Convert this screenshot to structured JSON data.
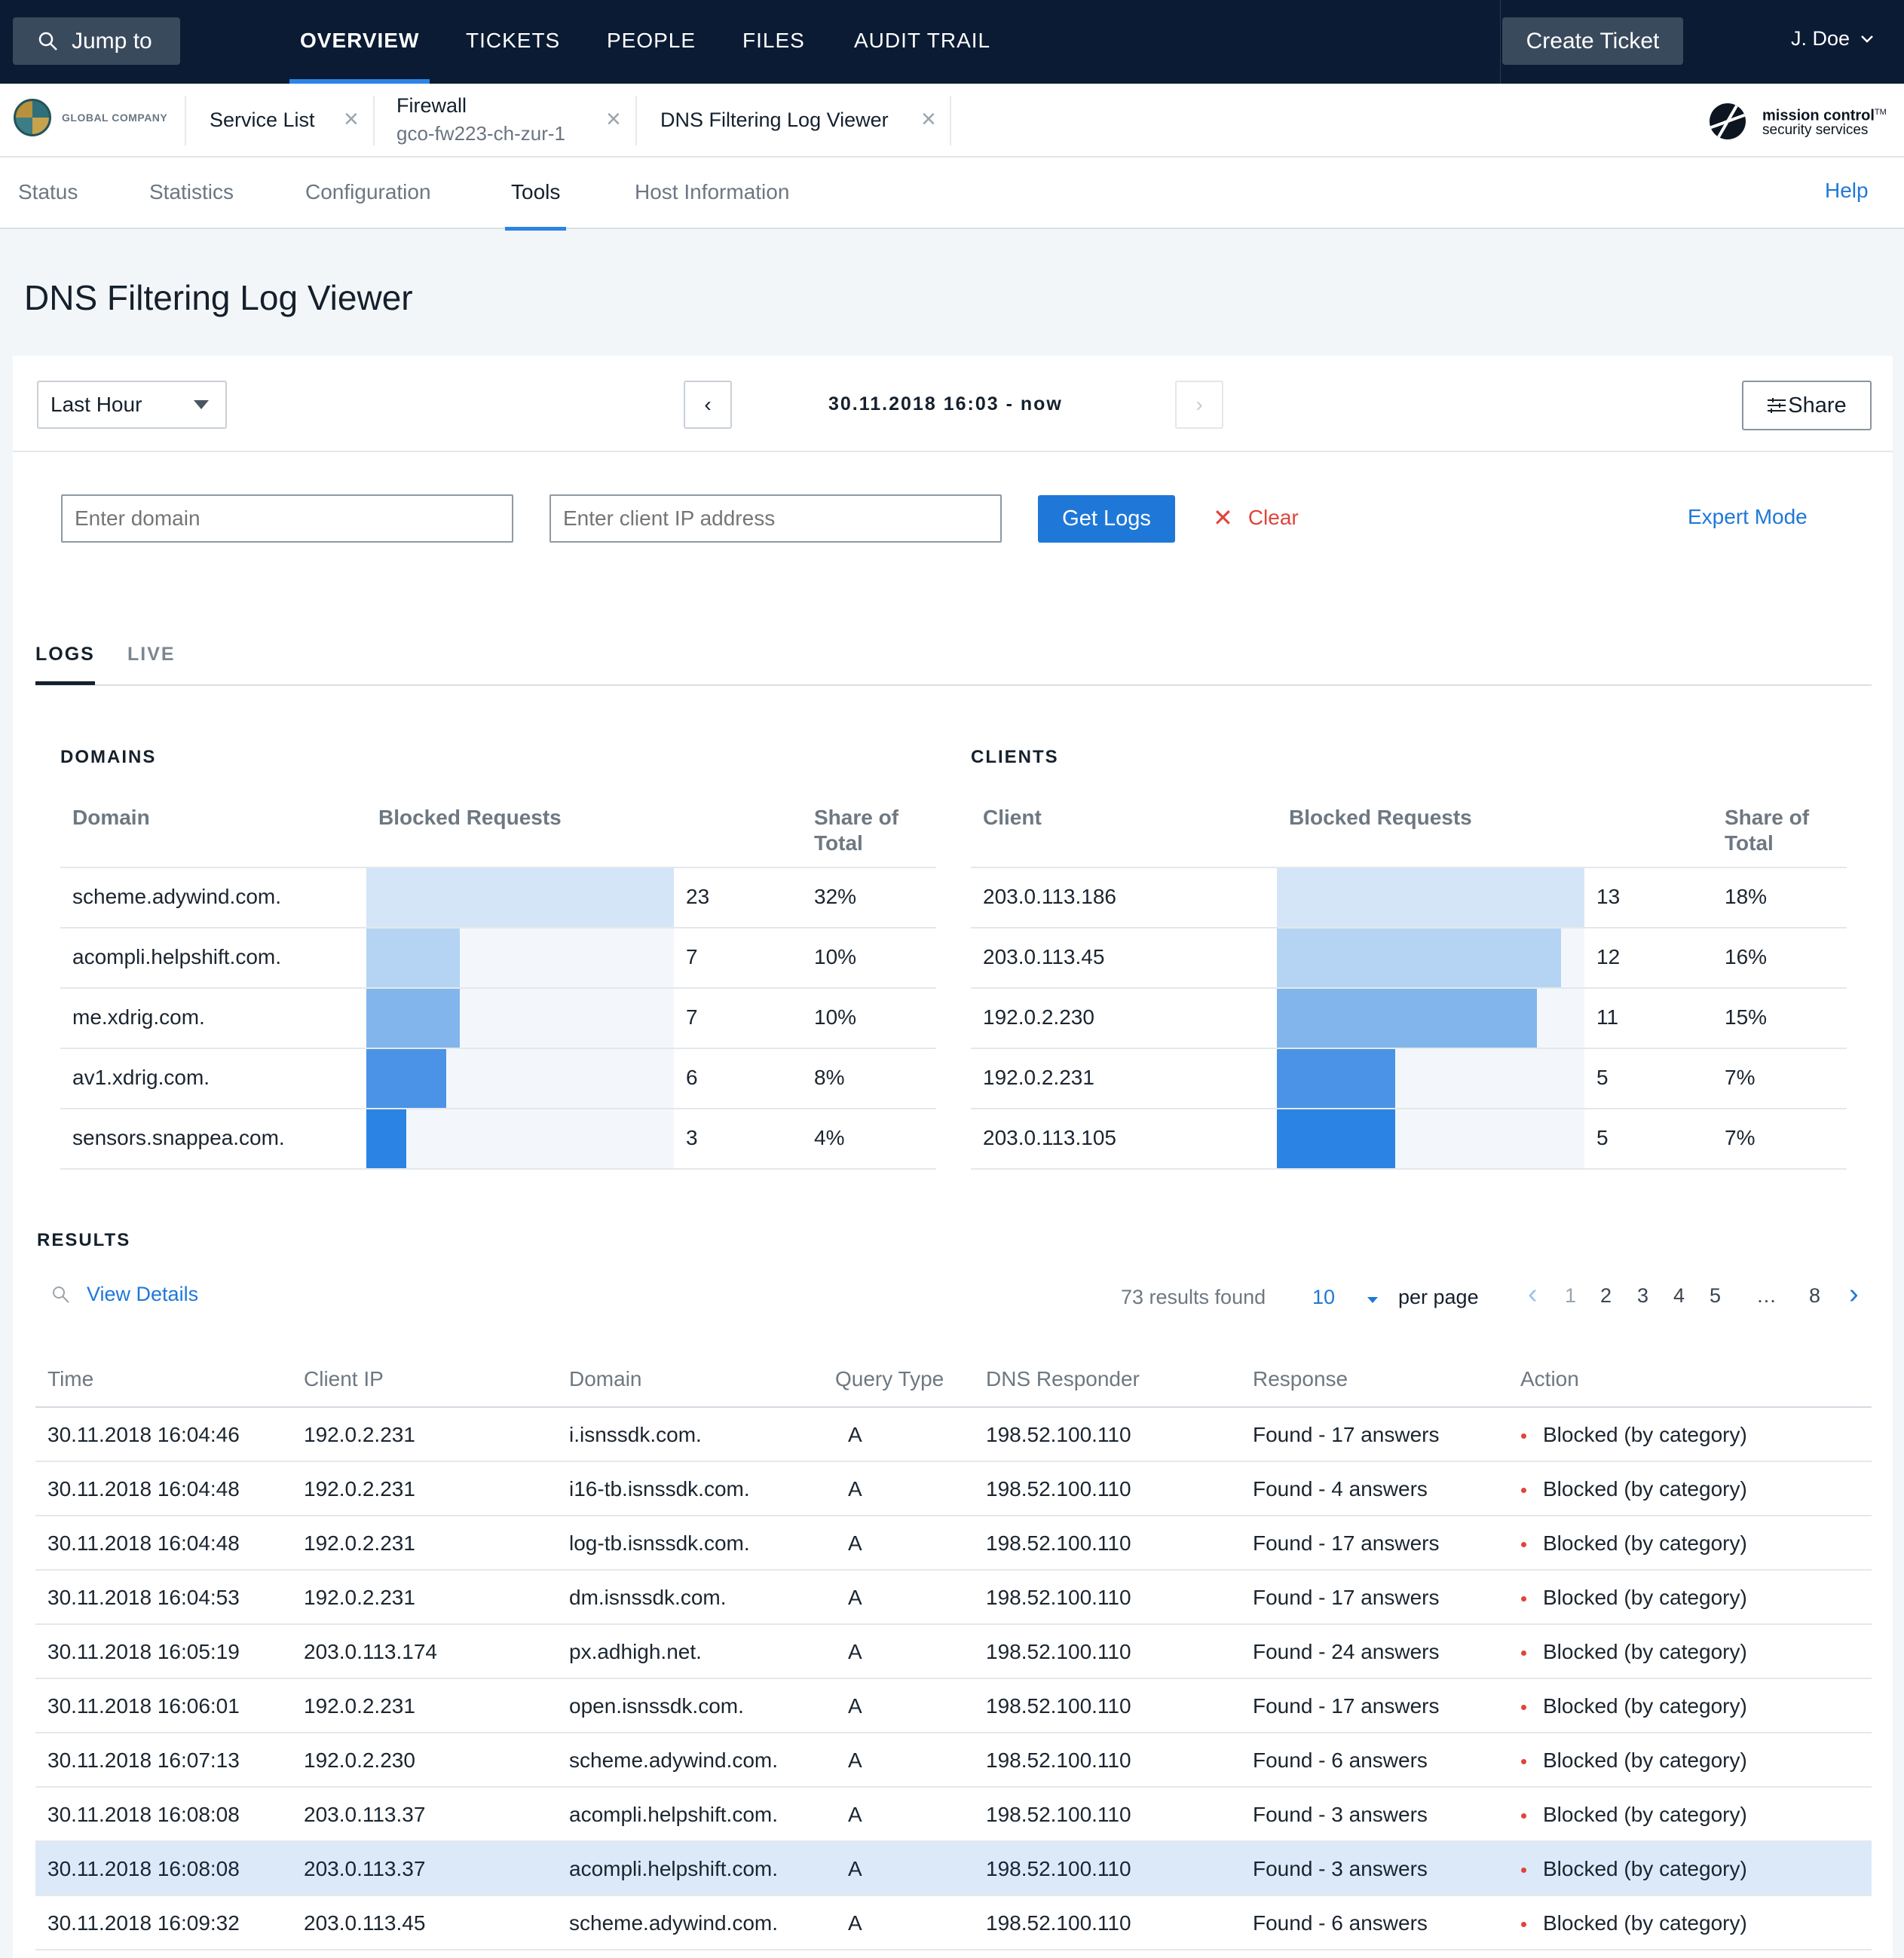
{
  "topnav": {
    "jump_label": "Jump to",
    "tabs": [
      {
        "label": "OVERVIEW",
        "active": true
      },
      {
        "label": "TICKETS",
        "active": false
      },
      {
        "label": "PEOPLE",
        "active": false
      },
      {
        "label": "FILES",
        "active": false
      },
      {
        "label": "AUDIT TRAIL",
        "active": false
      }
    ],
    "create_ticket": "Create Ticket",
    "user": "J. Doe"
  },
  "breadcrumbs": {
    "company": "GLOBAL COMPANY",
    "items": [
      {
        "title": "Service List",
        "subtitle": ""
      },
      {
        "title": "Firewall",
        "subtitle": "gco-fw223-ch-zur-1"
      },
      {
        "title": "DNS Filtering Log Viewer",
        "subtitle": ""
      }
    ],
    "brand_line1": "mission control",
    "brand_tm": "TM",
    "brand_line2": "security services"
  },
  "subtabs": {
    "items": [
      "Status",
      "Statistics",
      "Configuration",
      "Tools",
      "Host Information"
    ],
    "active": "Tools",
    "help": "Help"
  },
  "page": {
    "title": "DNS Filtering Log Viewer"
  },
  "timebar": {
    "range": "Last Hour",
    "prev": "‹",
    "next": "›",
    "range_label": "30.11.2018 16:03 - now",
    "share": "Share"
  },
  "filters": {
    "domain_placeholder": "Enter domain",
    "client_placeholder": "Enter client IP address",
    "get_logs": "Get Logs",
    "clear": "Clear",
    "expert_mode": "Expert Mode"
  },
  "log_tabs": {
    "logs": "LOGS",
    "live": "LIVE"
  },
  "domains": {
    "heading": "DOMAINS",
    "col_label": "Domain",
    "col_blocked": "Blocked Requests",
    "col_share_1": "Share of",
    "col_share_2": "Total",
    "max": 23,
    "rows": [
      {
        "label": "scheme.adywind.com.",
        "count": 23,
        "share": "32%"
      },
      {
        "label": "acompli.helpshift.com.",
        "count": 7,
        "share": "10%"
      },
      {
        "label": "me.xdrig.com.",
        "count": 7,
        "share": "10%"
      },
      {
        "label": "av1.xdrig.com.",
        "count": 6,
        "share": "8%"
      },
      {
        "label": "sensors.snappea.com.",
        "count": 3,
        "share": "4%"
      }
    ]
  },
  "clients": {
    "heading": "CLIENTS",
    "col_label": "Client",
    "col_blocked": "Blocked Requests",
    "col_share_1": "Share of",
    "col_share_2": "Total",
    "max": 13,
    "rows": [
      {
        "label": "203.0.113.186",
        "count": 13,
        "share": "18%"
      },
      {
        "label": "203.0.113.45",
        "count": 12,
        "share": "16%"
      },
      {
        "label": "192.0.2.230",
        "count": 11,
        "share": "15%"
      },
      {
        "label": "192.0.2.231",
        "count": 5,
        "share": "7%"
      },
      {
        "label": "203.0.113.105",
        "count": 5,
        "share": "7%"
      }
    ]
  },
  "bar_colors": [
    "#d4e5f8",
    "#b5d4f3",
    "#82b5ec",
    "#4b93e6",
    "#2b84e4"
  ],
  "results": {
    "heading": "RESULTS",
    "view_details": "View Details",
    "found": "73 results found",
    "per_page_value": "10",
    "per_page_label": "per page",
    "pages": [
      "1",
      "2",
      "3",
      "4",
      "5",
      "…",
      "8"
    ],
    "current_page": "1",
    "columns": [
      "Time",
      "Client IP",
      "Domain",
      "Query Type",
      "DNS Responder",
      "Response",
      "Action"
    ],
    "rows": [
      {
        "time": "30.11.2018 16:04:46",
        "client": "192.0.2.231",
        "domain": "i.isnssdk.com.",
        "qtype": "A",
        "responder": "198.52.100.110",
        "response": "Found - 17 answers",
        "action": "Blocked (by category)",
        "selected": false
      },
      {
        "time": "30.11.2018 16:04:48",
        "client": "192.0.2.231",
        "domain": "i16-tb.isnssdk.com.",
        "qtype": "A",
        "responder": "198.52.100.110",
        "response": "Found - 4 answers",
        "action": "Blocked (by category)",
        "selected": false
      },
      {
        "time": "30.11.2018 16:04:48",
        "client": "192.0.2.231",
        "domain": "log-tb.isnssdk.com.",
        "qtype": "A",
        "responder": "198.52.100.110",
        "response": "Found - 17 answers",
        "action": "Blocked (by category)",
        "selected": false
      },
      {
        "time": "30.11.2018 16:04:53",
        "client": "192.0.2.231",
        "domain": "dm.isnssdk.com.",
        "qtype": "A",
        "responder": "198.52.100.110",
        "response": "Found - 17 answers",
        "action": "Blocked (by category)",
        "selected": false
      },
      {
        "time": "30.11.2018 16:05:19",
        "client": "203.0.113.174",
        "domain": "px.adhigh.net.",
        "qtype": "A",
        "responder": "198.52.100.110",
        "response": "Found - 24 answers",
        "action": "Blocked (by category)",
        "selected": false
      },
      {
        "time": "30.11.2018 16:06:01",
        "client": "192.0.2.231",
        "domain": "open.isnssdk.com.",
        "qtype": "A",
        "responder": "198.52.100.110",
        "response": "Found - 17 answers",
        "action": "Blocked (by category)",
        "selected": false
      },
      {
        "time": "30.11.2018 16:07:13",
        "client": "192.0.2.230",
        "domain": "scheme.adywind.com.",
        "qtype": "A",
        "responder": "198.52.100.110",
        "response": "Found - 6 answers",
        "action": "Blocked (by category)",
        "selected": false
      },
      {
        "time": "30.11.2018 16:08:08",
        "client": "203.0.113.37",
        "domain": "acompli.helpshift.com.",
        "qtype": "A",
        "responder": "198.52.100.110",
        "response": "Found - 3 answers",
        "action": "Blocked (by category)",
        "selected": false
      },
      {
        "time": "30.11.2018 16:08:08",
        "client": "203.0.113.37",
        "domain": "acompli.helpshift.com.",
        "qtype": "A",
        "responder": "198.52.100.110",
        "response": "Found - 3 answers",
        "action": "Blocked (by category)",
        "selected": true
      },
      {
        "time": "30.11.2018 16:09:32",
        "client": "203.0.113.45",
        "domain": "scheme.adywind.com.",
        "qtype": "A",
        "responder": "198.52.100.110",
        "response": "Found - 6 answers",
        "action": "Blocked (by category)",
        "selected": false
      }
    ]
  }
}
